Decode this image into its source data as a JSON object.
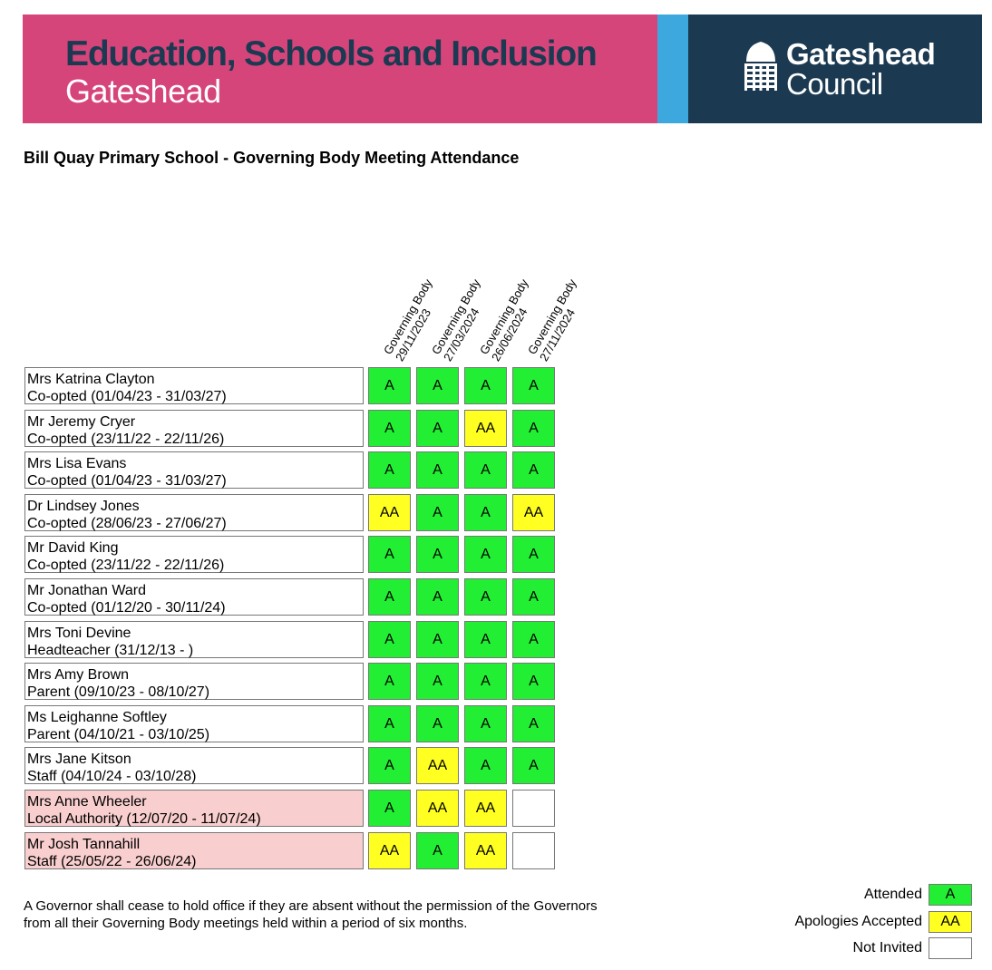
{
  "banner": {
    "title": "Education, Schools and Inclusion",
    "subtitle": "Gateshead",
    "council_line1": "Gateshead",
    "council_line2": "Council",
    "colors": {
      "pink": "#d6457a",
      "blue": "#3ca8dd",
      "navy": "#1b3a52"
    }
  },
  "page_title": "Bill Quay Primary School - Governing Body Meeting Attendance",
  "meetings": [
    {
      "name": "Governing Body",
      "date": "29/11/2023"
    },
    {
      "name": "Governing Body",
      "date": "27/03/2024"
    },
    {
      "name": "Governing Body",
      "date": "26/06/2024"
    },
    {
      "name": "Governing Body",
      "date": "27/11/2024"
    }
  ],
  "governors": [
    {
      "name": "Mrs Katrina Clayton",
      "role": "Co-opted (01/04/23 - 31/03/27)",
      "former": false,
      "attendance": [
        "A",
        "A",
        "A",
        "A"
      ]
    },
    {
      "name": "Mr Jeremy Cryer",
      "role": "Co-opted (23/11/22 - 22/11/26)",
      "former": false,
      "attendance": [
        "A",
        "A",
        "AA",
        "A"
      ]
    },
    {
      "name": "Mrs Lisa Evans",
      "role": "Co-opted (01/04/23 - 31/03/27)",
      "former": false,
      "attendance": [
        "A",
        "A",
        "A",
        "A"
      ]
    },
    {
      "name": "Dr Lindsey Jones",
      "role": "Co-opted (28/06/23 - 27/06/27)",
      "former": false,
      "attendance": [
        "AA",
        "A",
        "A",
        "AA"
      ]
    },
    {
      "name": "Mr David King",
      "role": "Co-opted (23/11/22 - 22/11/26)",
      "former": false,
      "attendance": [
        "A",
        "A",
        "A",
        "A"
      ]
    },
    {
      "name": "Mr Jonathan Ward",
      "role": "Co-opted (01/12/20 - 30/11/24)",
      "former": false,
      "attendance": [
        "A",
        "A",
        "A",
        "A"
      ]
    },
    {
      "name": "Mrs Toni Devine",
      "role": "Headteacher (31/12/13 - )",
      "former": false,
      "attendance": [
        "A",
        "A",
        "A",
        "A"
      ]
    },
    {
      "name": "Mrs Amy Brown",
      "role": "Parent (09/10/23 - 08/10/27)",
      "former": false,
      "attendance": [
        "A",
        "A",
        "A",
        "A"
      ]
    },
    {
      "name": "Ms Leighanne Softley",
      "role": "Parent (04/10/21 - 03/10/25)",
      "former": false,
      "attendance": [
        "A",
        "A",
        "A",
        "A"
      ]
    },
    {
      "name": "Mrs Jane Kitson",
      "role": "Staff (04/10/24 - 03/10/28)",
      "former": false,
      "attendance": [
        "A",
        "AA",
        "A",
        "A"
      ]
    },
    {
      "name": "Mrs Anne Wheeler",
      "role": "Local Authority (12/07/20 - 11/07/24)",
      "former": true,
      "attendance": [
        "A",
        "AA",
        "AA",
        ""
      ]
    },
    {
      "name": "Mr Josh Tannahill",
      "role": "Staff (25/05/22 - 26/06/24)",
      "former": true,
      "attendance": [
        "AA",
        "A",
        "AA",
        ""
      ]
    }
  ],
  "status_colors": {
    "A": "#22ee33",
    "AA": "#ffff22",
    "": "#ffffff",
    "former_row": "#f9cece"
  },
  "note_lines": [
    "A Governor shall cease to hold office if they are absent without the permission of the Governors",
    "from all their Governing Body meetings held within a period of six months."
  ],
  "legend": [
    {
      "label": "Attended",
      "code": "A"
    },
    {
      "label": "Apologies Accepted",
      "code": "AA"
    },
    {
      "label": "Not Invited",
      "code": ""
    }
  ]
}
